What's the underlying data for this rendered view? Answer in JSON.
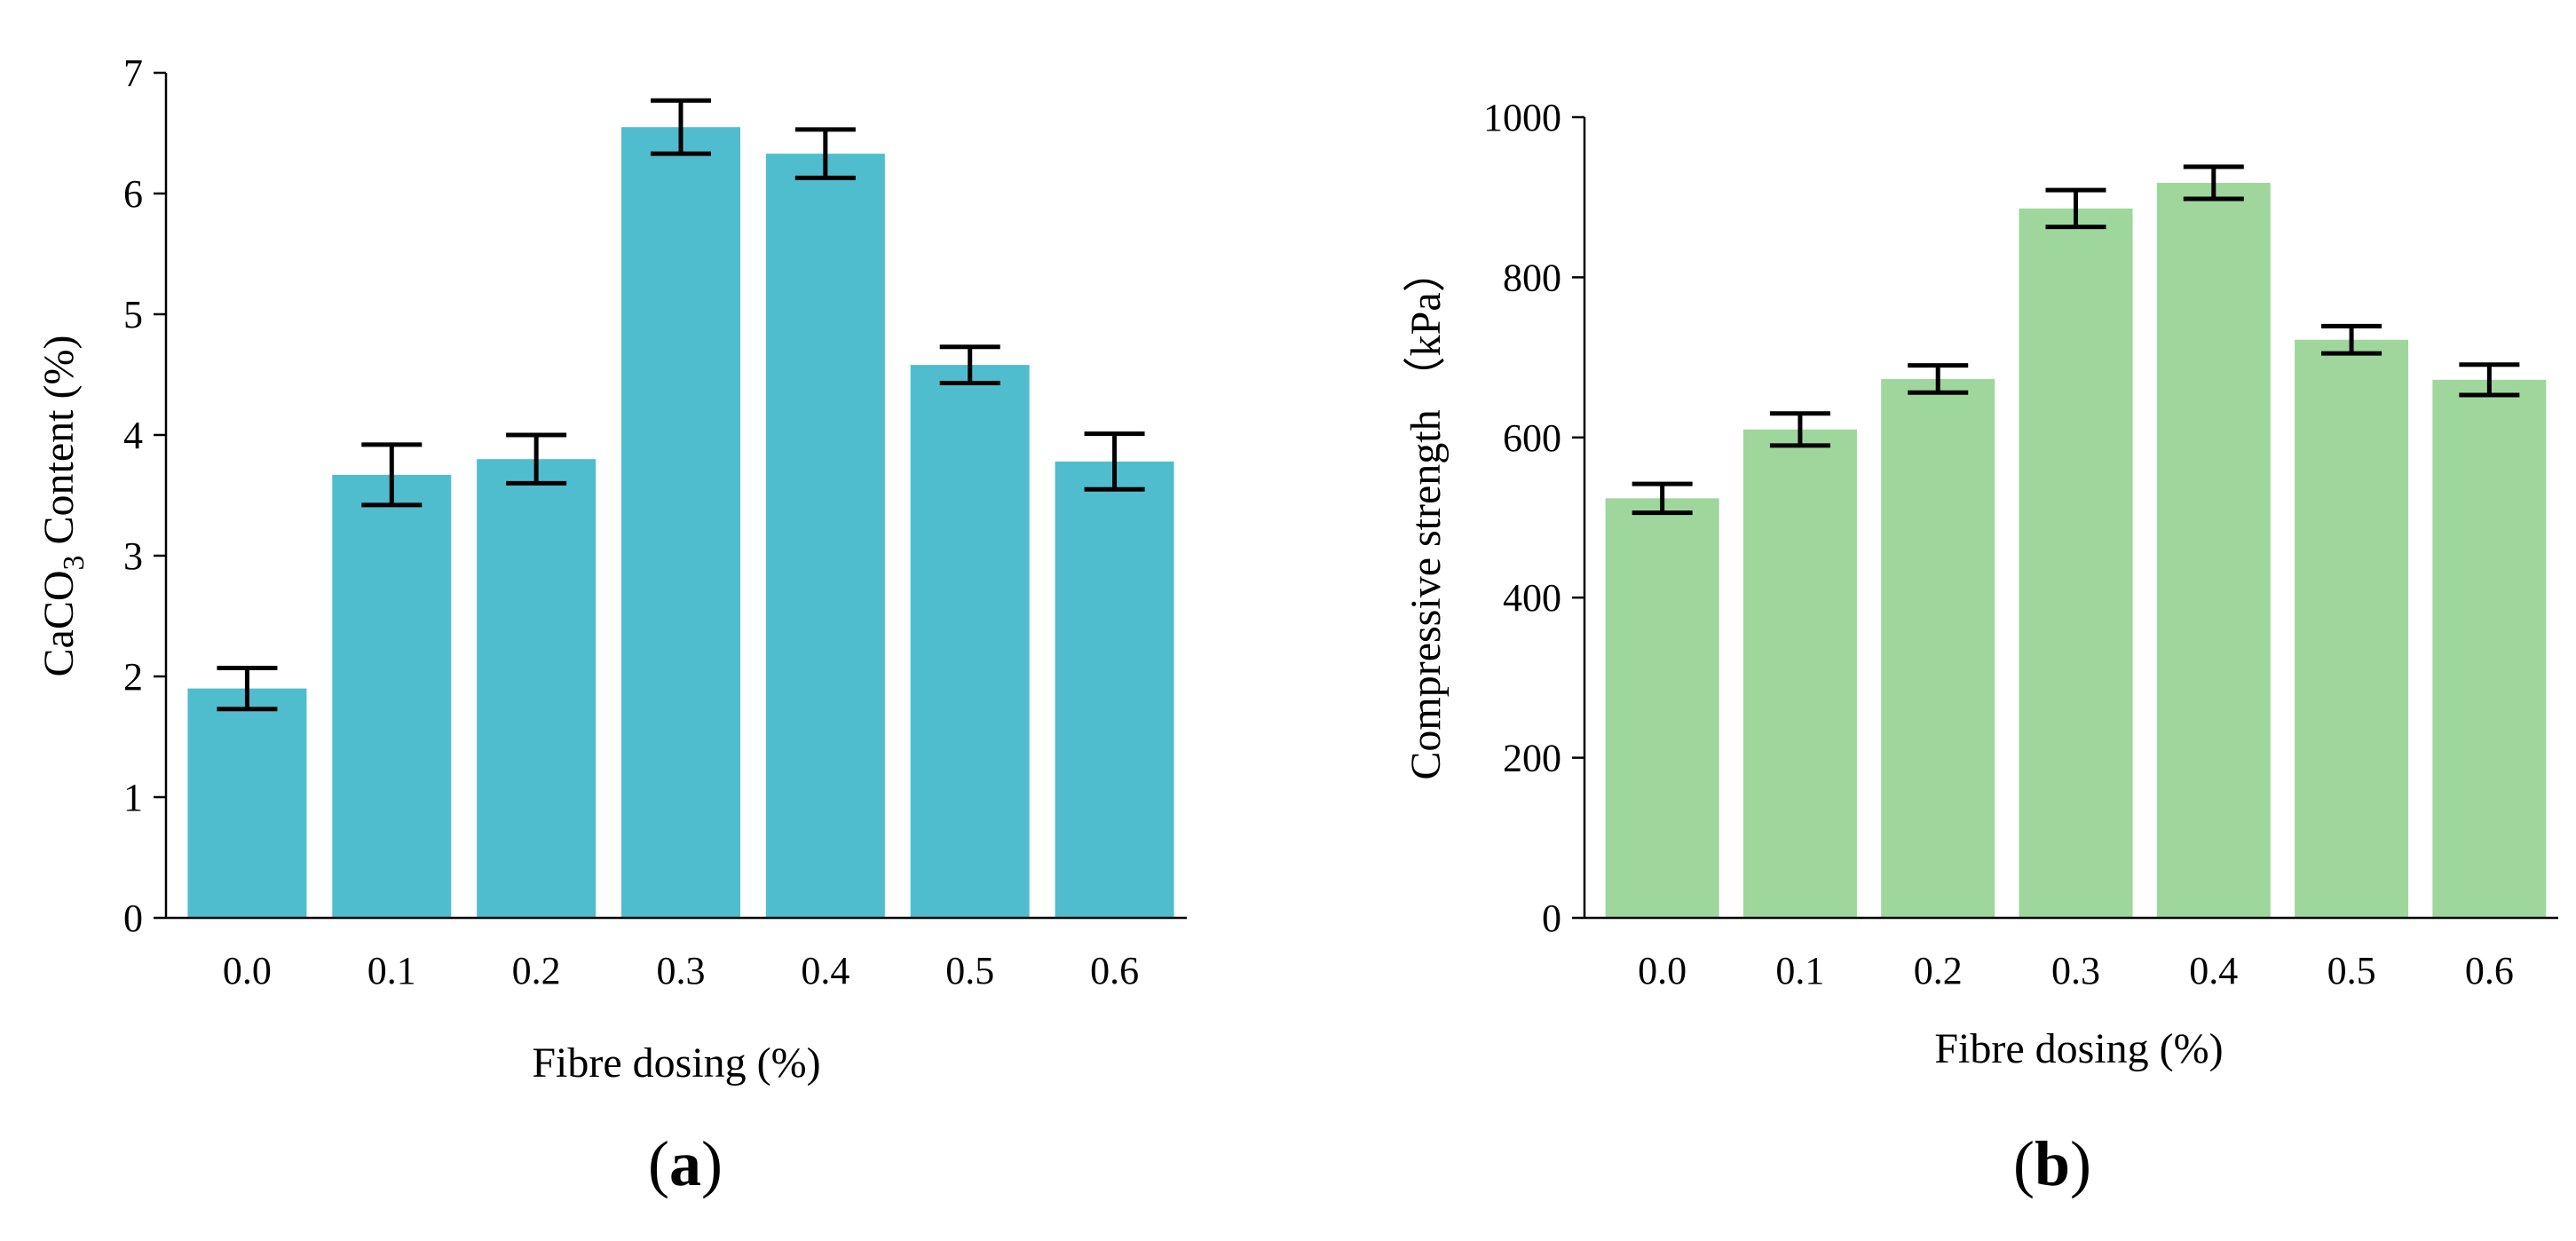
{
  "chart_data": [
    {
      "type": "bar",
      "panel": "(a)",
      "panel_letter": "a",
      "categories": [
        "0.0",
        "0.1",
        "0.2",
        "0.3",
        "0.4",
        "0.5",
        "0.6"
      ],
      "values": [
        1.9,
        3.67,
        3.8,
        6.55,
        6.33,
        4.58,
        3.78
      ],
      "errors": [
        0.17,
        0.25,
        0.2,
        0.22,
        0.2,
        0.15,
        0.23
      ],
      "ylim": [
        0,
        7
      ],
      "yticks": [
        "0",
        "1",
        "2",
        "3",
        "4",
        "5",
        "6",
        "7"
      ],
      "ytick_values": [
        0,
        1,
        2,
        3,
        4,
        5,
        6,
        7
      ],
      "xlabel": "Fibre dosing (%)",
      "ylabel_pre": "CaCO",
      "ylabel_sub": "3",
      "ylabel_post": " Content (%)",
      "bar_color": "#4fbdce"
    },
    {
      "type": "bar",
      "panel": "(b)",
      "panel_letter": "b",
      "categories": [
        "0.0",
        "0.1",
        "0.2",
        "0.3",
        "0.4",
        "0.5",
        "0.6"
      ],
      "values": [
        524,
        610,
        673,
        886,
        918,
        722,
        672
      ],
      "errors": [
        18,
        20,
        17,
        23,
        20,
        17,
        19
      ],
      "ylim": [
        0,
        1000
      ],
      "yticks": [
        "0",
        "200",
        "400",
        "600",
        "800",
        "1000"
      ],
      "ytick_values": [
        0,
        200,
        400,
        600,
        800,
        1000
      ],
      "xlabel": "Fibre dosing (%)",
      "ylabel": "Compressive strength （kPa）",
      "bar_color": "#9fd69c"
    }
  ]
}
